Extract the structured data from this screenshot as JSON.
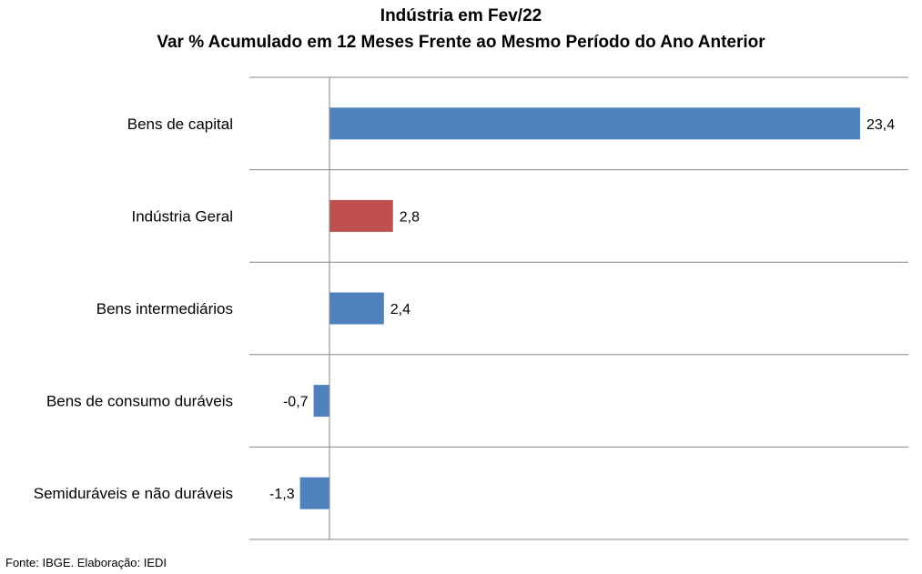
{
  "chart_data": {
    "type": "bar",
    "orientation": "horizontal",
    "title": "Indústria em Fev/22",
    "subtitle": "Var % Acumulado em 12 Meses Frente ao Mesmo Período do Ano Anterior",
    "categories": [
      "Bens de capital",
      "Indústria Geral",
      "Bens intermediários",
      "Bens de consumo duráveis",
      "Semiduráveis e não duráveis"
    ],
    "values": [
      23.4,
      2.8,
      2.4,
      -0.7,
      -1.3
    ],
    "value_labels": [
      "23,4",
      "2,8",
      "2,4",
      "-0,7",
      "-1,3"
    ],
    "bar_colors": [
      "#4f81bd",
      "#c0504d",
      "#4f81bd",
      "#4f81bd",
      "#4f81bd"
    ],
    "xlim": [
      -4.3,
      25.5
    ],
    "grid": "horizontal separators",
    "legend": "none"
  },
  "footer": {
    "source": "Fonte: IBGE. Elaboração: IEDI"
  }
}
